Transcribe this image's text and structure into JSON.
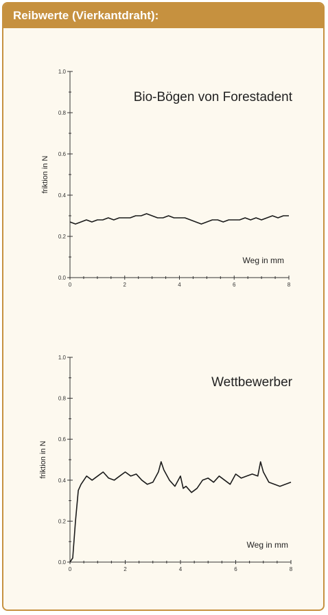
{
  "panel": {
    "title": "Reibwerte (Vierkantdraht):"
  },
  "colors": {
    "accent": "#c6913f",
    "background": "#fdf9ef",
    "line": "#1a1a1a"
  },
  "chart_data": [
    {
      "type": "line",
      "title": "Bio-Bögen von Forestadent",
      "xlabel": "Weg in mm",
      "ylabel": "friktion in N",
      "xlim": [
        0,
        8
      ],
      "ylim": [
        0,
        1.0
      ],
      "xticks": [
        "0",
        "2",
        "4",
        "6",
        "8"
      ],
      "yticks": [
        "0.0",
        "0.2",
        "0.4",
        "0.6",
        "0.8",
        "1.0"
      ],
      "grid": false,
      "series": [
        {
          "x": [
            0,
            0.2,
            0.4,
            0.6,
            0.8,
            1.0,
            1.2,
            1.4,
            1.6,
            1.8,
            2.0,
            2.2,
            2.4,
            2.6,
            2.8,
            3.0,
            3.2,
            3.4,
            3.6,
            3.8,
            4.0,
            4.2,
            4.4,
            4.6,
            4.8,
            5.0,
            5.2,
            5.4,
            5.6,
            5.8,
            6.0,
            6.2,
            6.4,
            6.6,
            6.8,
            7.0,
            7.2,
            7.4,
            7.6,
            7.8,
            8.0
          ],
          "y": [
            0.27,
            0.26,
            0.27,
            0.28,
            0.27,
            0.28,
            0.28,
            0.29,
            0.28,
            0.29,
            0.29,
            0.29,
            0.3,
            0.3,
            0.31,
            0.3,
            0.29,
            0.29,
            0.3,
            0.29,
            0.29,
            0.29,
            0.28,
            0.27,
            0.26,
            0.27,
            0.28,
            0.28,
            0.27,
            0.28,
            0.28,
            0.28,
            0.29,
            0.28,
            0.29,
            0.28,
            0.29,
            0.3,
            0.29,
            0.3,
            0.3
          ]
        }
      ]
    },
    {
      "type": "line",
      "title": "Wettbewerber",
      "xlabel": "Weg in mm",
      "ylabel": "friktion in N",
      "xlim": [
        0,
        8
      ],
      "ylim": [
        0,
        1.0
      ],
      "xticks": [
        "0",
        "2",
        "4",
        "6",
        "8"
      ],
      "yticks": [
        "0.0",
        "0.2",
        "0.4",
        "0.6",
        "0.8",
        "1.0"
      ],
      "grid": false,
      "series": [
        {
          "x": [
            0,
            0.1,
            0.2,
            0.3,
            0.4,
            0.6,
            0.8,
            1.0,
            1.2,
            1.4,
            1.6,
            1.8,
            2.0,
            2.2,
            2.4,
            2.6,
            2.8,
            3.0,
            3.2,
            3.3,
            3.4,
            3.6,
            3.8,
            4.0,
            4.1,
            4.2,
            4.4,
            4.6,
            4.8,
            5.0,
            5.2,
            5.4,
            5.6,
            5.8,
            6.0,
            6.2,
            6.4,
            6.6,
            6.8,
            6.9,
            7.0,
            7.2,
            7.4,
            7.6,
            7.8,
            8.0
          ],
          "y": [
            0.0,
            0.02,
            0.2,
            0.35,
            0.38,
            0.42,
            0.4,
            0.42,
            0.44,
            0.41,
            0.4,
            0.42,
            0.44,
            0.42,
            0.43,
            0.4,
            0.38,
            0.39,
            0.44,
            0.49,
            0.45,
            0.4,
            0.37,
            0.42,
            0.36,
            0.37,
            0.34,
            0.36,
            0.4,
            0.41,
            0.39,
            0.42,
            0.4,
            0.38,
            0.43,
            0.41,
            0.42,
            0.43,
            0.42,
            0.49,
            0.44,
            0.39,
            0.38,
            0.37,
            0.38,
            0.39
          ]
        }
      ]
    }
  ]
}
